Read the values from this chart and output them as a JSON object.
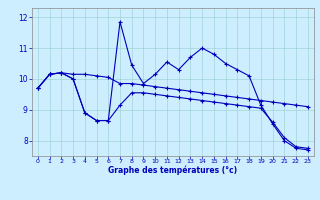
{
  "xlabel": "Graphe des températures (°c)",
  "background_color": "#cceeff",
  "line_color": "#0000bb",
  "xlim": [
    -0.5,
    23.5
  ],
  "ylim": [
    7.5,
    12.3
  ],
  "yticks": [
    8,
    9,
    10,
    11,
    12
  ],
  "xticks": [
    0,
    1,
    2,
    3,
    4,
    5,
    6,
    7,
    8,
    9,
    10,
    11,
    12,
    13,
    14,
    15,
    16,
    17,
    18,
    19,
    20,
    21,
    22,
    23
  ],
  "curve1_x": [
    0,
    1,
    2,
    3,
    4,
    5,
    6,
    7,
    8,
    9,
    10,
    11,
    12,
    13,
    14,
    15,
    16,
    17,
    18,
    19,
    20,
    21,
    22,
    23
  ],
  "curve1_y": [
    9.7,
    10.15,
    10.2,
    10.0,
    8.9,
    8.65,
    8.65,
    11.85,
    10.45,
    9.85,
    10.15,
    10.55,
    10.3,
    10.7,
    11.0,
    10.8,
    10.5,
    10.3,
    10.1,
    9.15,
    8.55,
    8.0,
    7.75,
    7.7
  ],
  "curve2_x": [
    0,
    1,
    2,
    3,
    4,
    5,
    6,
    7,
    8,
    9,
    10,
    11,
    12,
    13,
    14,
    15,
    16,
    17,
    18,
    19,
    20,
    21,
    22,
    23
  ],
  "curve2_y": [
    9.7,
    10.15,
    10.2,
    10.15,
    10.15,
    10.1,
    10.05,
    9.85,
    9.85,
    9.8,
    9.75,
    9.7,
    9.65,
    9.6,
    9.55,
    9.5,
    9.45,
    9.4,
    9.35,
    9.3,
    9.25,
    9.2,
    9.15,
    9.1
  ],
  "curve3_x": [
    0,
    1,
    2,
    3,
    4,
    5,
    6,
    7,
    8,
    9,
    10,
    11,
    12,
    13,
    14,
    15,
    16,
    17,
    18,
    19,
    20,
    21,
    22,
    23
  ],
  "curve3_y": [
    9.7,
    10.15,
    10.2,
    10.0,
    8.9,
    8.65,
    8.65,
    9.15,
    9.55,
    9.55,
    9.5,
    9.45,
    9.4,
    9.35,
    9.3,
    9.25,
    9.2,
    9.15,
    9.1,
    9.05,
    8.6,
    8.1,
    7.8,
    7.75
  ]
}
